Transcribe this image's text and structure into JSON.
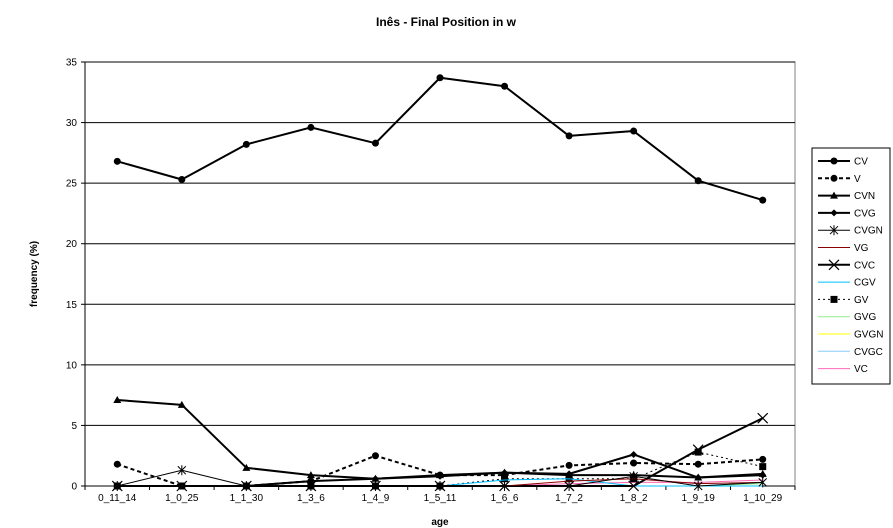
{
  "chart_data": {
    "type": "line",
    "title": "Inês - Final Position in w",
    "xlabel": "age",
    "ylabel": "frequency (%)",
    "ylim": [
      0,
      35
    ],
    "yticks": [
      "0",
      "5",
      "10",
      "15",
      "20",
      "25",
      "30",
      "35"
    ],
    "grid": "horizontal",
    "legend_position": "right",
    "categories": [
      "0_11_14",
      "1_0_25",
      "1_1_30",
      "1_3_6",
      "1_4_9",
      "1_5_11",
      "1_6_6",
      "1_7_2",
      "1_8_2",
      "1_9_19",
      "1_10_29"
    ],
    "series": [
      {
        "name": "CV",
        "color": "#000000",
        "dash": "",
        "width": 2,
        "marker": "circle",
        "values": [
          26.8,
          25.3,
          28.2,
          29.6,
          28.3,
          33.7,
          33.0,
          28.9,
          29.3,
          25.2,
          23.6
        ]
      },
      {
        "name": "V",
        "color": "#000000",
        "dash": "4,3",
        "width": 2,
        "marker": "circle",
        "values": [
          1.8,
          0,
          0,
          0.4,
          2.5,
          0.9,
          0.9,
          1.7,
          1.9,
          1.8,
          2.2
        ]
      },
      {
        "name": "CVN",
        "color": "#000000",
        "dash": "",
        "width": 2,
        "marker": "triangle",
        "values": [
          7.1,
          6.7,
          1.5,
          0.9,
          0.6,
          0.9,
          1.1,
          0.9,
          0.9,
          0.7,
          1.0
        ]
      },
      {
        "name": "CVG",
        "color": "#000000",
        "dash": "",
        "width": 2,
        "marker": "diamond",
        "values": [
          0,
          0,
          0,
          0.4,
          0.6,
          0.8,
          1.1,
          1.0,
          2.6,
          0.7,
          0.9
        ]
      },
      {
        "name": "CVGN",
        "color": "#000000",
        "dash": "",
        "width": 1,
        "marker": "star",
        "values": [
          0,
          1.3,
          0,
          0,
          0,
          0,
          0,
          0,
          0.8,
          0,
          0.3
        ]
      },
      {
        "name": "VG",
        "color": "#8b0000",
        "dash": "",
        "width": 1,
        "marker": "none",
        "values": [
          0,
          0,
          0,
          0,
          0,
          0,
          0,
          0.4,
          0.6,
          0.2,
          0.3
        ]
      },
      {
        "name": "CVC",
        "color": "#000000",
        "dash": "",
        "width": 2,
        "marker": "x",
        "values": [
          0,
          0,
          0,
          0,
          0,
          0,
          0,
          0,
          0,
          3.0,
          5.6
        ]
      },
      {
        "name": "CGV",
        "color": "#00bfff",
        "dash": "",
        "width": 1,
        "marker": "none",
        "values": [
          0,
          0,
          0,
          0,
          0,
          0,
          0.5,
          0.6,
          0,
          0,
          0
        ]
      },
      {
        "name": "GV",
        "color": "#000000",
        "dash": "2,3",
        "width": 1,
        "marker": "square",
        "values": [
          0,
          0,
          0,
          0,
          0,
          0,
          0.6,
          0.6,
          0.6,
          2.8,
          1.6
        ]
      },
      {
        "name": "GVG",
        "color": "#90ee90",
        "dash": "",
        "width": 1,
        "marker": "none",
        "values": [
          0,
          0,
          0,
          0,
          0,
          0,
          0,
          0,
          0,
          0,
          0.2
        ]
      },
      {
        "name": "GVGN",
        "color": "#ffff00",
        "dash": "",
        "width": 1,
        "marker": "none",
        "values": [
          0,
          0,
          0,
          0,
          0,
          0,
          0,
          0,
          0,
          0,
          0
        ]
      },
      {
        "name": "CVGC",
        "color": "#87cefa",
        "dash": "",
        "width": 1,
        "marker": "none",
        "values": [
          0,
          0,
          0,
          0,
          0,
          0,
          0,
          0,
          0,
          0,
          0.3
        ]
      },
      {
        "name": "VC",
        "color": "#ff69b4",
        "dash": "",
        "width": 1,
        "marker": "none",
        "values": [
          0,
          0,
          0,
          0,
          0,
          0,
          0,
          0.2,
          0.3,
          0.3,
          0.5
        ]
      }
    ]
  }
}
